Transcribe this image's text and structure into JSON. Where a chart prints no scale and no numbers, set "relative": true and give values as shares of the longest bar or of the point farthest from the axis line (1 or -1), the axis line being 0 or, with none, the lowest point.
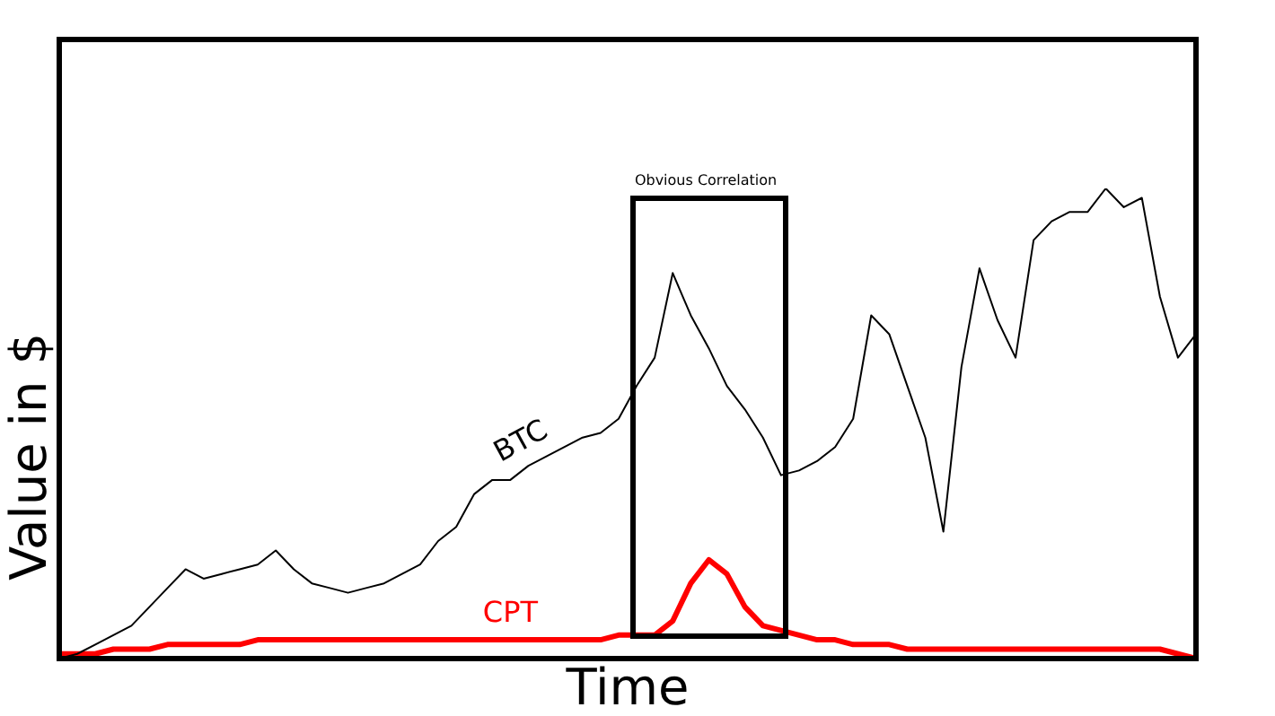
{
  "chart_data": {
    "type": "line",
    "xlabel": "Time",
    "ylabel": "Value in $",
    "relative": true,
    "tick_labels": false,
    "legend": false,
    "marker": "none",
    "line_style": "solid",
    "categories": [
      null,
      null,
      null,
      null,
      null,
      null,
      null,
      null,
      null,
      null,
      null,
      null,
      null,
      null,
      null,
      null,
      null,
      null,
      null,
      null,
      null,
      null,
      null,
      null,
      null,
      null,
      null,
      null,
      null,
      null,
      null,
      null,
      null,
      null,
      null,
      null,
      null,
      null,
      null,
      null,
      null,
      null,
      null,
      null,
      null,
      null,
      null,
      null,
      null,
      null,
      null,
      null,
      null,
      null,
      null,
      null,
      null,
      null,
      null,
      null,
      null,
      null,
      null,
      null
    ],
    "series": [
      {
        "name": "BTC",
        "color": "#000000",
        "values": [
          0,
          0.01,
          0.03,
          0.05,
          0.07,
          0.11,
          0.15,
          0.19,
          0.17,
          0.18,
          0.19,
          0.2,
          0.23,
          0.19,
          0.16,
          0.15,
          0.14,
          0.15,
          0.16,
          0.18,
          0.2,
          0.25,
          0.28,
          0.35,
          0.38,
          0.38,
          0.41,
          0.43,
          0.45,
          0.47,
          0.48,
          0.51,
          0.58,
          0.64,
          0.82,
          0.73,
          0.66,
          0.58,
          0.53,
          0.47,
          0.39,
          0.4,
          0.42,
          0.45,
          0.51,
          0.73,
          0.69,
          0.58,
          0.47,
          0.27,
          0.62,
          0.83,
          0.72,
          0.64,
          0.89,
          0.93,
          0.95,
          0.95,
          1,
          0.96,
          0.98,
          0.77,
          0.64,
          0.69
        ]
      },
      {
        "name": "CPT",
        "color": "#ff0000",
        "values": [
          0.01,
          0.01,
          0.01,
          0.02,
          0.02,
          0.02,
          0.03,
          0.03,
          0.03,
          0.03,
          0.03,
          0.04,
          0.04,
          0.04,
          0.04,
          0.04,
          0.04,
          0.04,
          0.04,
          0.04,
          0.04,
          0.04,
          0.04,
          0.04,
          0.04,
          0.04,
          0.04,
          0.04,
          0.04,
          0.04,
          0.04,
          0.05,
          0.05,
          0.05,
          0.08,
          0.16,
          0.21,
          0.18,
          0.11,
          0.07,
          0.06,
          0.05,
          0.04,
          0.04,
          0.03,
          0.03,
          0.03,
          0.02,
          0.02,
          0.02,
          0.02,
          0.02,
          0.02,
          0.02,
          0.02,
          0.02,
          0.02,
          0.02,
          0.02,
          0.02,
          0.02,
          0.02,
          0.01,
          0
        ]
      }
    ],
    "annotations": [
      "Obvious Correlation"
    ]
  }
}
